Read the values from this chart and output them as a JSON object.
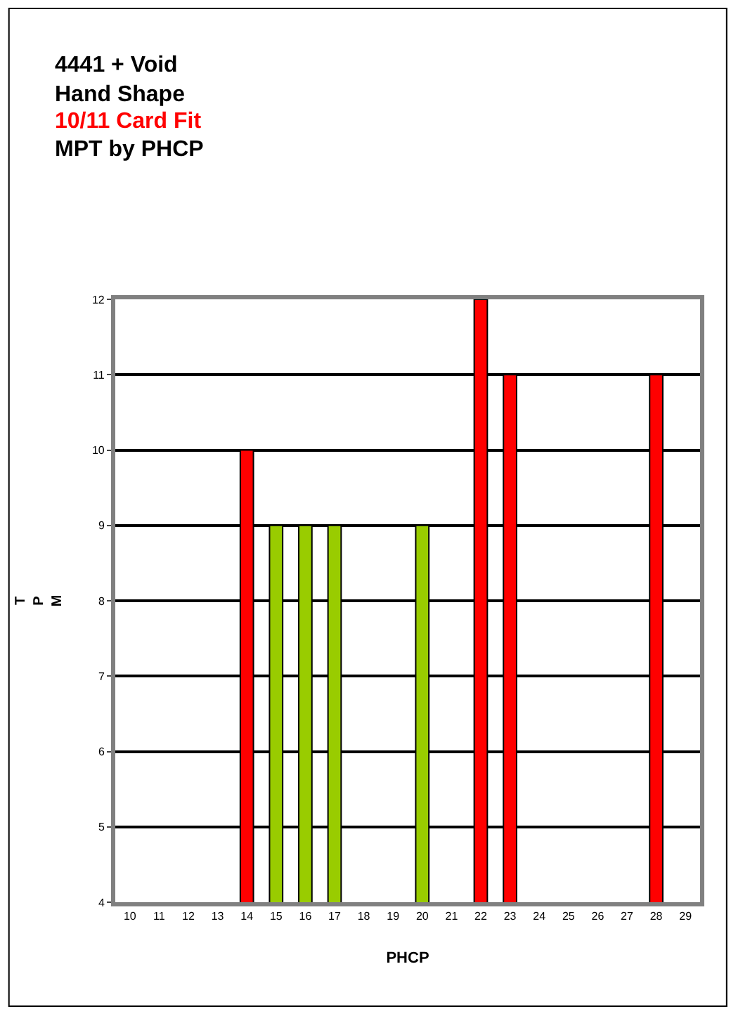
{
  "chart_data": {
    "type": "bar",
    "title": "4441 + Void\nHand Shape",
    "subtitle": "10/11 Card Fit",
    "annotations": [
      "MPT by PHCP"
    ],
    "xlabel": "PHCP",
    "ylabel": "T\nP\nM",
    "categories": [
      "10",
      "11",
      "12",
      "13",
      "14",
      "15",
      "16",
      "17",
      "18",
      "19",
      "20",
      "21",
      "22",
      "23",
      "24",
      "25",
      "26",
      "27",
      "28",
      "29"
    ],
    "values": [
      null,
      null,
      null,
      null,
      10,
      9,
      9,
      9,
      null,
      null,
      9,
      null,
      12,
      11,
      null,
      null,
      null,
      null,
      11,
      null
    ],
    "colors": [
      "#ff0000",
      "#ff0000",
      "#ff0000",
      "#ff0000",
      "#ff0000",
      "#99cc00",
      "#99cc00",
      "#99cc00",
      "#ff0000",
      "#ff0000",
      "#99cc00",
      "#ff0000",
      "#ff0000",
      "#ff0000",
      "#ff0000",
      "#ff0000",
      "#ff0000",
      "#ff0000",
      "#ff0000",
      "#ff0000"
    ],
    "ylim": [
      4,
      12
    ],
    "yticks": [
      4,
      5,
      6,
      7,
      8,
      9,
      10,
      11,
      12
    ],
    "grid": "y",
    "legend": false
  }
}
